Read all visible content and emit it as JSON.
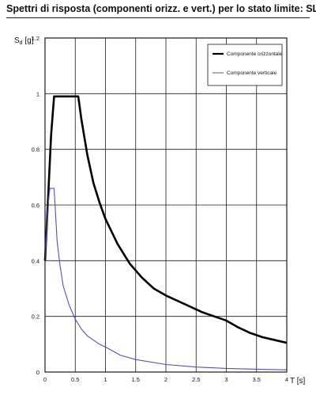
{
  "title": "Spettri di risposta (componenti orizz. e vert.) per lo stato limite:  SLV",
  "colors": {
    "background": "#ffffff",
    "grid": "#1a1a1a",
    "orizzontale": "#000000",
    "verticale": "#5a4fa8"
  },
  "chart_data": {
    "type": "line",
    "ylabel_main": "S",
    "ylabel_sub": "d",
    "ylabel_unit": " [g]",
    "xlabel": "T  [s]",
    "xlim": [
      0,
      4
    ],
    "ylim": [
      0,
      1.2
    ],
    "xticks": [
      0,
      0.5,
      1,
      1.5,
      2,
      2.5,
      3,
      3.5,
      4
    ],
    "xtick_labels": [
      "0",
      "0.5",
      "1",
      "1.5",
      "2",
      "2.5",
      "3",
      "3.5",
      "4"
    ],
    "yticks": [
      0,
      0.2,
      0.4,
      0.6,
      0.8,
      1,
      1.2
    ],
    "ytick_labels": [
      "0",
      "0.2",
      "0.4",
      "0.6",
      "0.8",
      "1",
      "1.2"
    ],
    "grid": true,
    "legend_position": "top-right",
    "series": [
      {
        "name": "Componente orizzontale",
        "color": "#000000",
        "points": [
          [
            0,
            0.4
          ],
          [
            0.05,
            0.62
          ],
          [
            0.1,
            0.85
          ],
          [
            0.15,
            0.99
          ],
          [
            0.2,
            0.99
          ],
          [
            0.3,
            0.99
          ],
          [
            0.4,
            0.99
          ],
          [
            0.5,
            0.99
          ],
          [
            0.55,
            0.99
          ],
          [
            0.6,
            0.91
          ],
          [
            0.7,
            0.78
          ],
          [
            0.8,
            0.68
          ],
          [
            0.9,
            0.61
          ],
          [
            1.0,
            0.55
          ],
          [
            1.2,
            0.46
          ],
          [
            1.4,
            0.39
          ],
          [
            1.6,
            0.34
          ],
          [
            1.8,
            0.3
          ],
          [
            2.0,
            0.275
          ],
          [
            2.2,
            0.255
          ],
          [
            2.4,
            0.235
          ],
          [
            2.6,
            0.215
          ],
          [
            2.8,
            0.2
          ],
          [
            3.0,
            0.185
          ],
          [
            3.2,
            0.16
          ],
          [
            3.4,
            0.14
          ],
          [
            3.6,
            0.125
          ],
          [
            3.8,
            0.115
          ],
          [
            4.0,
            0.105
          ]
        ]
      },
      {
        "name": "Componente verticale",
        "color": "#5a4fa8",
        "points": [
          [
            0,
            0.4
          ],
          [
            0.03,
            0.52
          ],
          [
            0.06,
            0.62
          ],
          [
            0.08,
            0.66
          ],
          [
            0.15,
            0.66
          ],
          [
            0.2,
            0.47
          ],
          [
            0.25,
            0.38
          ],
          [
            0.3,
            0.31
          ],
          [
            0.4,
            0.24
          ],
          [
            0.5,
            0.19
          ],
          [
            0.6,
            0.155
          ],
          [
            0.7,
            0.13
          ],
          [
            0.8,
            0.115
          ],
          [
            0.9,
            0.1
          ],
          [
            1.0,
            0.09
          ],
          [
            1.25,
            0.06
          ],
          [
            1.5,
            0.045
          ],
          [
            2.0,
            0.027
          ],
          [
            2.5,
            0.018
          ],
          [
            3.0,
            0.013
          ],
          [
            3.5,
            0.01
          ],
          [
            4.0,
            0.008
          ]
        ]
      }
    ]
  }
}
